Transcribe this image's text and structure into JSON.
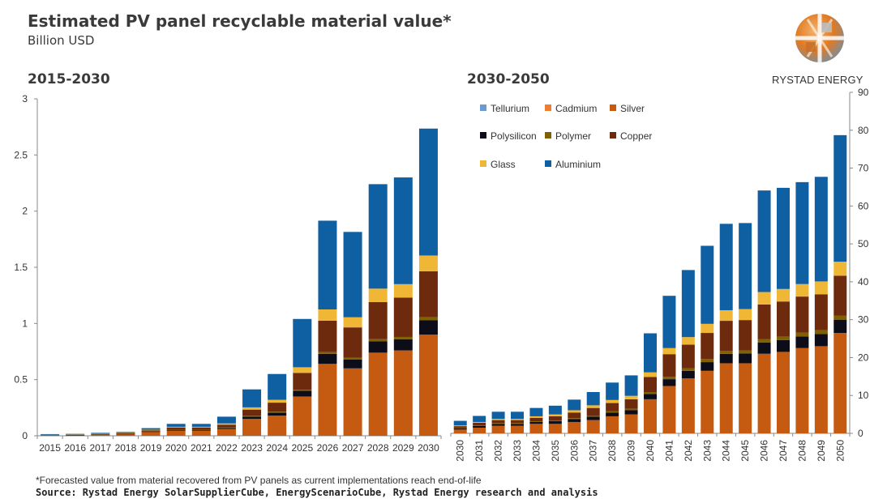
{
  "header": {
    "title": "Estimated PV panel recyclable material value*",
    "subtitle": "Billion USD"
  },
  "logo": {
    "text": "RYSTAD ENERGY"
  },
  "footer": {
    "footnote": "*Forecasted value from material recovered from PV panels as current implementations reach end-of-life",
    "source": "Source: Rystad Energy SolarSupplierCube, EnergyScenarioCube, Rystad Energy research and analysis"
  },
  "colors": {
    "Tellurium": "#6c9bd1",
    "Cadmium": "#ed7d31",
    "Silver": "#c55a11",
    "Polysilicon": "#0d0d1a",
    "Polymer": "#806000",
    "Copper": "#6e2a0c",
    "Glass": "#f0b737",
    "Aluminium": "#0f5fa3"
  },
  "chart_data": [
    {
      "type": "bar",
      "stacked": true,
      "title": "2015-2030",
      "ylim": [
        0,
        3
      ],
      "yticks": [
        "0",
        "0.5",
        "1",
        "1.5",
        "2",
        "2.5",
        "3"
      ],
      "categories": [
        "2015",
        "2016",
        "2017",
        "2018",
        "2019",
        "2020",
        "2021",
        "2022",
        "2023",
        "2024",
        "2025",
        "2026",
        "2027",
        "2028",
        "2029",
        "2030"
      ],
      "series": [
        {
          "name": "Tellurium",
          "values": [
            0,
            0,
            0,
            0,
            0,
            0,
            0,
            0,
            0,
            0,
            0,
            0,
            0,
            0,
            0,
            0
          ]
        },
        {
          "name": "Cadmium",
          "values": [
            0,
            0,
            0,
            0,
            0,
            0,
            0,
            0,
            0,
            0,
            0,
            0,
            0,
            0,
            0,
            0
          ]
        },
        {
          "name": "Silver",
          "values": [
            0.005,
            0.006,
            0.01,
            0.015,
            0.03,
            0.045,
            0.045,
            0.06,
            0.15,
            0.18,
            0.35,
            0.64,
            0.6,
            0.74,
            0.76,
            0.9
          ]
        },
        {
          "name": "Polysilicon",
          "values": [
            0.001,
            0.001,
            0.002,
            0.002,
            0.005,
            0.006,
            0.006,
            0.01,
            0.02,
            0.025,
            0.05,
            0.09,
            0.08,
            0.1,
            0.1,
            0.13
          ]
        },
        {
          "name": "Polymer",
          "values": [
            0,
            0,
            0.001,
            0.001,
            0.002,
            0.003,
            0.003,
            0.004,
            0.008,
            0.01,
            0.01,
            0.015,
            0.015,
            0.02,
            0.02,
            0.025
          ]
        },
        {
          "name": "Copper",
          "values": [
            0.002,
            0.003,
            0.005,
            0.007,
            0.012,
            0.02,
            0.02,
            0.025,
            0.055,
            0.08,
            0.15,
            0.28,
            0.27,
            0.33,
            0.35,
            0.41
          ]
        },
        {
          "name": "Glass",
          "values": [
            0.001,
            0.001,
            0.002,
            0.002,
            0.005,
            0.006,
            0.006,
            0.011,
            0.02,
            0.025,
            0.05,
            0.1,
            0.09,
            0.12,
            0.12,
            0.14
          ]
        },
        {
          "name": "Aluminium",
          "values": [
            0.006,
            0.006,
            0.006,
            0.007,
            0.014,
            0.026,
            0.026,
            0.06,
            0.16,
            0.23,
            0.43,
            0.79,
            0.76,
            0.93,
            0.95,
            1.13
          ]
        }
      ]
    },
    {
      "type": "bar",
      "stacked": true,
      "title": "2030-2050",
      "ylim": [
        0,
        90
      ],
      "yticks": [
        "0",
        "10",
        "20",
        "30",
        "40",
        "50",
        "60",
        "70",
        "80",
        "90"
      ],
      "legend": "top-left",
      "categories": [
        "2030",
        "2031",
        "2032",
        "2033",
        "2034",
        "2035",
        "2036",
        "2037",
        "2038",
        "2039",
        "2040",
        "2041",
        "2042",
        "2043",
        "2044",
        "2045",
        "2046",
        "2047",
        "2048",
        "2049",
        "2050"
      ],
      "series": [
        {
          "name": "Tellurium",
          "values": [
            0,
            0,
            0,
            0,
            0,
            0,
            0,
            0,
            0,
            0,
            0,
            0,
            0,
            0,
            0,
            0,
            0,
            0,
            0,
            0,
            0
          ]
        },
        {
          "name": "Cadmium",
          "values": [
            0,
            0,
            0,
            0,
            0,
            0,
            0,
            0,
            0,
            0,
            0,
            0,
            0,
            0,
            0,
            0,
            0,
            0,
            0,
            0,
            0
          ]
        },
        {
          "name": "Silver",
          "values": [
            1,
            1.5,
            2,
            2,
            2.5,
            2.5,
            3,
            3.5,
            4.5,
            5,
            9,
            12.5,
            14.5,
            16.5,
            18.5,
            18.5,
            21,
            21.5,
            22.5,
            23,
            26.5
          ]
        },
        {
          "name": "Polysilicon",
          "values": [
            0.3,
            0.5,
            0.5,
            0.5,
            0.5,
            0.7,
            0.8,
            0.9,
            1,
            1.1,
            1.4,
            1.8,
            2,
            2.3,
            2.5,
            2.6,
            3,
            3.1,
            3.1,
            3.2,
            3.5
          ]
        },
        {
          "name": "Polymer",
          "values": [
            0.1,
            0.1,
            0.2,
            0.2,
            0.2,
            0.2,
            0.2,
            0.3,
            0.3,
            0.4,
            0.5,
            0.6,
            0.7,
            0.8,
            0.8,
            0.8,
            0.9,
            0.9,
            1,
            1,
            1.1
          ]
        },
        {
          "name": "Copper",
          "values": [
            0.5,
            0.7,
            0.8,
            0.8,
            0.9,
            1.1,
            1.5,
            2,
            2.2,
            2.5,
            4,
            6,
            6.2,
            6.9,
            7.9,
            8,
            9.1,
            9.3,
            9.5,
            9.5,
            10.5
          ]
        },
        {
          "name": "Glass",
          "values": [
            0.2,
            0.2,
            0.3,
            0.3,
            0.4,
            0.5,
            0.6,
            0.7,
            0.8,
            0.9,
            1.2,
            1.6,
            2,
            2.4,
            2.8,
            2.9,
            3.3,
            3.3,
            3.3,
            3.4,
            3.7
          ]
        },
        {
          "name": "Aluminium",
          "values": [
            1.2,
            1.6,
            1.9,
            1.9,
            2.2,
            2.3,
            2.8,
            3.5,
            4.6,
            5.4,
            10.3,
            13.8,
            17.7,
            20.6,
            22.8,
            22.7,
            26.8,
            26.7,
            26.9,
            27.6,
            33.4
          ]
        }
      ]
    }
  ]
}
